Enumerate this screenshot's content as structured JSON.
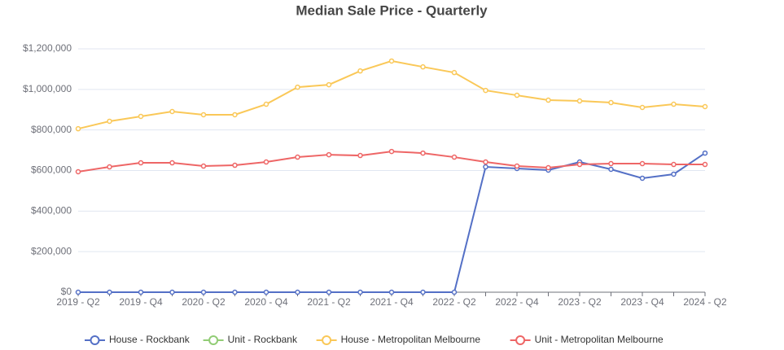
{
  "chart_data": {
    "type": "line",
    "title": "Median Sale Price - Quarterly",
    "categories": [
      "2019 - Q2",
      null,
      "2019 - Q4",
      null,
      "2020 - Q2",
      null,
      "2020 - Q4",
      null,
      "2021 - Q2",
      null,
      "2021 - Q4",
      null,
      "2022 - Q2",
      null,
      "2022 - Q4",
      null,
      "2023 - Q2",
      null,
      "2023 - Q4",
      null,
      "2024 - Q2"
    ],
    "series": [
      {
        "name": "House - Rockbank",
        "color": "#5470c6",
        "values": [
          0,
          0,
          0,
          0,
          0,
          0,
          0,
          0,
          0,
          0,
          0,
          0,
          0,
          618000,
          610000,
          602000,
          642000,
          606000,
          562000,
          582000,
          686000
        ]
      },
      {
        "name": "Unit - Rockbank",
        "color": "#91cc75",
        "values": [
          null,
          null,
          null,
          null,
          null,
          null,
          null,
          null,
          null,
          null,
          null,
          null,
          null,
          null,
          null,
          null,
          null,
          null,
          null,
          null,
          null
        ]
      },
      {
        "name": "House - Metropolitan Melbourne",
        "color": "#fac858",
        "values": [
          806000,
          843000,
          867000,
          891000,
          875000,
          875000,
          927000,
          1011000,
          1023000,
          1091000,
          1140000,
          1111000,
          1083000,
          995000,
          971000,
          947000,
          943000,
          935000,
          911000,
          927000,
          915000
        ]
      },
      {
        "name": "Unit - Metropolitan Melbourne",
        "color": "#ee6666",
        "values": [
          594000,
          618000,
          638000,
          638000,
          622000,
          626000,
          642000,
          666000,
          678000,
          674000,
          694000,
          686000,
          666000,
          642000,
          622000,
          614000,
          630000,
          634000,
          634000,
          630000,
          630000
        ]
      }
    ],
    "ylim": [
      0,
      1200000
    ],
    "yticks": [
      {
        "value": 0,
        "label": "$0"
      },
      {
        "value": 200000,
        "label": "$200,000"
      },
      {
        "value": 400000,
        "label": "$400,000"
      },
      {
        "value": 600000,
        "label": "$600,000"
      },
      {
        "value": 800000,
        "label": "$800,000"
      },
      {
        "value": 1000000,
        "label": "$1,000,000"
      },
      {
        "value": 1200000,
        "label": "$1,200,000"
      }
    ],
    "grid": true,
    "legend": "bottom"
  }
}
